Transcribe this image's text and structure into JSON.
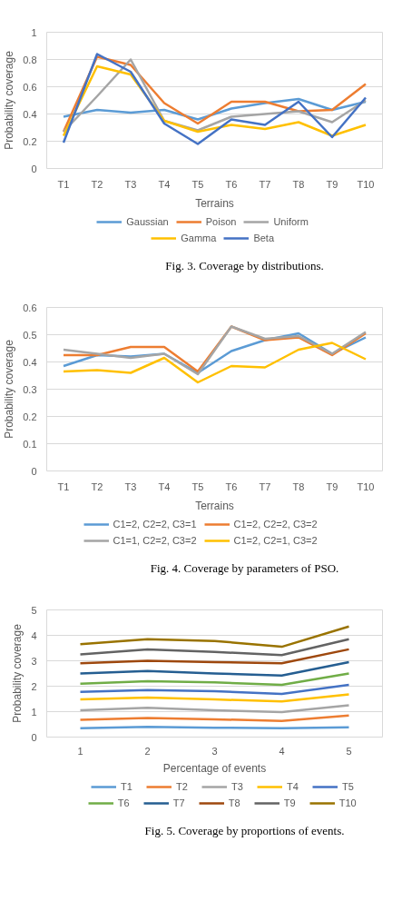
{
  "chart_data": [
    {
      "type": "line",
      "xlabel": "Terrains",
      "ylabel": "Probability coverage",
      "categories": [
        "T1",
        "T2",
        "T3",
        "T4",
        "T5",
        "T6",
        "T7",
        "T8",
        "T9",
        "T10"
      ],
      "ylim": [
        0,
        1
      ],
      "yticks": [
        0,
        {
          "value": 0.2,
          "label": "0.2"
        },
        {
          "value": 0.4,
          "label": "0.4"
        },
        {
          "value": 0.6,
          "label": "0.6"
        },
        {
          "value": 0.8,
          "label": "0.8"
        },
        1
      ],
      "grid": "y",
      "legend": "bottom",
      "annotations": [
        "Fig. 3. Coverage by distributions."
      ],
      "series": [
        {
          "name": "Gaussian",
          "color": "#5b9bd5",
          "values": [
            0.38,
            0.43,
            0.41,
            0.43,
            0.36,
            0.44,
            0.48,
            0.51,
            0.43,
            0.49
          ]
        },
        {
          "name": "Poison",
          "color": "#ed7d31",
          "values": [
            0.27,
            0.82,
            0.76,
            0.48,
            0.33,
            0.49,
            0.49,
            0.42,
            0.43,
            0.62
          ]
        },
        {
          "name": "Uniform",
          "color": "#a5a5a5",
          "values": [
            0.27,
            0.53,
            0.8,
            0.35,
            0.28,
            0.38,
            0.4,
            0.42,
            0.34,
            0.5
          ]
        },
        {
          "name": "Gamma",
          "color": "#ffc000",
          "values": [
            0.24,
            0.75,
            0.69,
            0.35,
            0.27,
            0.32,
            0.29,
            0.34,
            0.24,
            0.32
          ]
        },
        {
          "name": "Beta",
          "color": "#4472c4",
          "values": [
            0.19,
            0.84,
            0.71,
            0.33,
            0.18,
            0.36,
            0.32,
            0.49,
            0.23,
            0.52
          ]
        }
      ]
    },
    {
      "type": "line",
      "xlabel": "Terrains",
      "ylabel": "Probability coverage",
      "categories": [
        "T1",
        "T2",
        "T3",
        "T4",
        "T5",
        "T6",
        "T7",
        "T8",
        "T9",
        "T10"
      ],
      "ylim": [
        0,
        0.6
      ],
      "yticks": [
        0,
        {
          "value": 0.1,
          "label": "0.1"
        },
        {
          "value": 0.2,
          "label": "0.2"
        },
        {
          "value": 0.3,
          "label": "0.3"
        },
        {
          "value": 0.4,
          "label": "0.4"
        },
        {
          "value": 0.5,
          "label": "0.5"
        },
        {
          "value": 0.6,
          "label": "0.6"
        }
      ],
      "grid": "y",
      "legend": "bottom",
      "annotations": [
        "Fig. 4. Coverage by parameters of PSO."
      ],
      "series": [
        {
          "name": "C1=2, C2=2, C3=1",
          "color": "#5b9bd5",
          "values": [
            0.385,
            0.425,
            0.42,
            0.43,
            0.36,
            0.44,
            0.48,
            0.505,
            0.43,
            0.49
          ]
        },
        {
          "name": "C1=2, C2=2, C3=2",
          "color": "#ed7d31",
          "values": [
            0.425,
            0.425,
            0.455,
            0.455,
            0.365,
            0.53,
            0.48,
            0.49,
            0.425,
            0.505
          ]
        },
        {
          "name": "C1=1, C2=2, C3=2",
          "color": "#a5a5a5",
          "values": [
            0.445,
            0.43,
            0.415,
            0.43,
            0.355,
            0.53,
            0.485,
            0.495,
            0.43,
            0.51
          ]
        },
        {
          "name": "C1=2, C2=1, C3=2",
          "color": "#ffc000",
          "values": [
            0.365,
            0.37,
            0.36,
            0.415,
            0.325,
            0.385,
            0.38,
            0.445,
            0.47,
            0.41
          ]
        }
      ]
    },
    {
      "type": "line",
      "xlabel": "Percentage of events",
      "ylabel": "Probability coverage",
      "categories": [
        "1",
        "2",
        "3",
        "4",
        "5"
      ],
      "ylim": [
        0,
        5
      ],
      "yticks": [
        0,
        1,
        2,
        3,
        4,
        5
      ],
      "grid": "y",
      "legend": "bottom",
      "annotations": [
        "Fig. 5. Coverage by proportions of events."
      ],
      "series": [
        {
          "name": "T1",
          "color": "#5b9bd5",
          "values": [
            0.35,
            0.4,
            0.37,
            0.35,
            0.38
          ]
        },
        {
          "name": "T2",
          "color": "#ed7d31",
          "values": [
            0.68,
            0.75,
            0.7,
            0.63,
            0.85
          ]
        },
        {
          "name": "T3",
          "color": "#a5a5a5",
          "values": [
            1.05,
            1.15,
            1.05,
            0.98,
            1.25
          ]
        },
        {
          "name": "T4",
          "color": "#ffc000",
          "values": [
            1.48,
            1.55,
            1.48,
            1.4,
            1.68
          ]
        },
        {
          "name": "T5",
          "color": "#4472c4",
          "values": [
            1.78,
            1.85,
            1.8,
            1.7,
            2.05
          ]
        },
        {
          "name": "T6",
          "color": "#70ad47",
          "values": [
            2.1,
            2.2,
            2.15,
            2.05,
            2.5
          ]
        },
        {
          "name": "T7",
          "color": "#255e91",
          "values": [
            2.5,
            2.6,
            2.5,
            2.42,
            2.95
          ]
        },
        {
          "name": "T8",
          "color": "#9e480e",
          "values": [
            2.9,
            3.0,
            2.95,
            2.9,
            3.45
          ]
        },
        {
          "name": "T9",
          "color": "#636363",
          "values": [
            3.25,
            3.45,
            3.35,
            3.22,
            3.85
          ]
        },
        {
          "name": "T10",
          "color": "#997300",
          "values": [
            3.65,
            3.85,
            3.78,
            3.55,
            4.35
          ]
        }
      ]
    }
  ]
}
